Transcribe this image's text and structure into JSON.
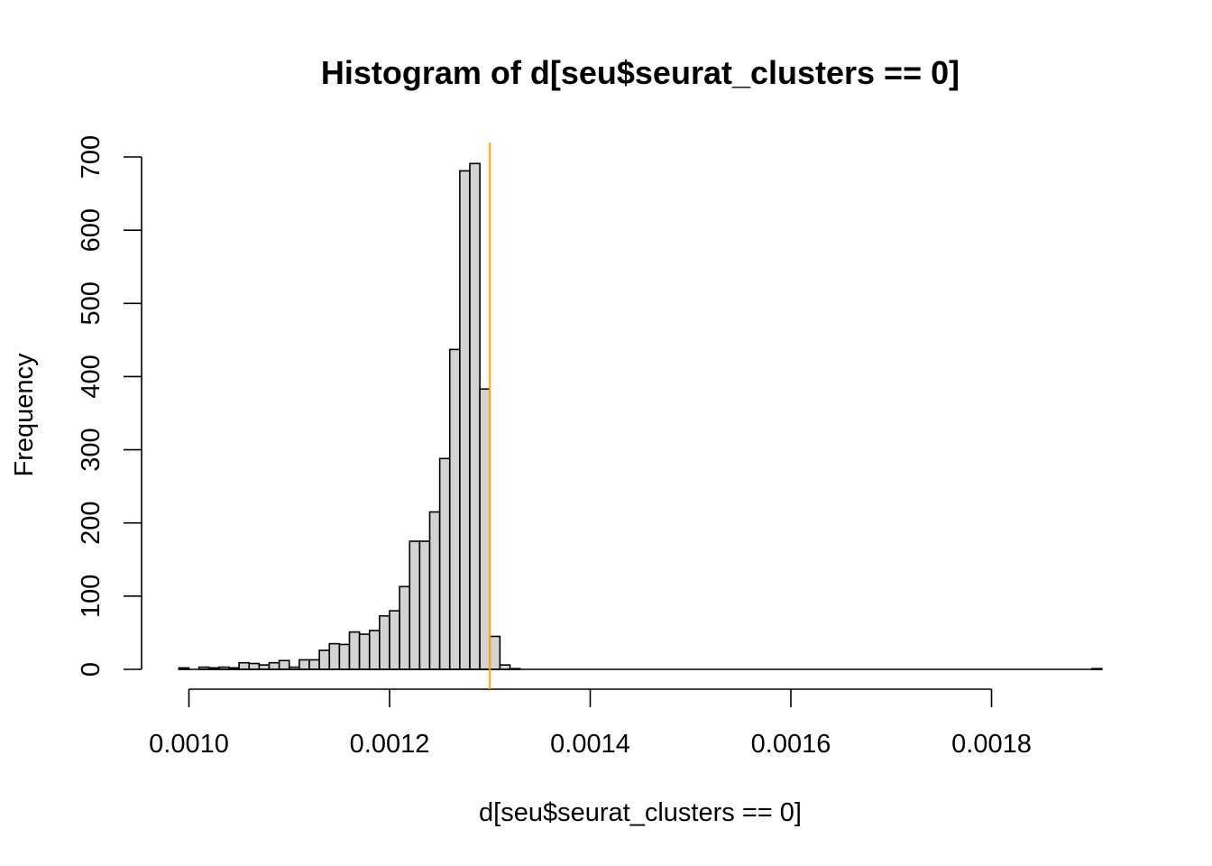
{
  "chart_data": {
    "type": "bar",
    "title": "Histogram of d[seu$seurat_clusters == 0]",
    "xlabel": "d[seu$seurat_clusters == 0]",
    "ylabel": "Frequency",
    "bin_width": 1e-05,
    "bins_start": [
      0.00099,
      0.001,
      0.00101,
      0.00102,
      0.00103,
      0.00104,
      0.00105,
      0.00106,
      0.00107,
      0.00108,
      0.00109,
      0.0011,
      0.00111,
      0.00112,
      0.00113,
      0.00114,
      0.00115,
      0.00116,
      0.00117,
      0.00118,
      0.00119,
      0.0012,
      0.00121,
      0.00122,
      0.00123,
      0.00124,
      0.00125,
      0.00126,
      0.00127,
      0.00128,
      0.00129,
      0.0013,
      0.00131,
      0.00132,
      0.0019
    ],
    "values": [
      2,
      0,
      3,
      2,
      3,
      2,
      9,
      8,
      6,
      9,
      12,
      3,
      13,
      13,
      26,
      35,
      34,
      51,
      48,
      53,
      73,
      80,
      113,
      175,
      175,
      215,
      288,
      437,
      681,
      691,
      383,
      45,
      6,
      1,
      1
    ],
    "xlim": [
      0.00099,
      0.00191
    ],
    "ylim": [
      0,
      700
    ],
    "x_ticks": [
      "0.0010",
      "0.0012",
      "0.0014",
      "0.0016",
      "0.0018"
    ],
    "y_ticks": [
      "0",
      "100",
      "200",
      "300",
      "400",
      "500",
      "600",
      "700"
    ],
    "vline": {
      "x": 0.0013,
      "color": "#FFA500"
    },
    "bar_fill": "#D3D3D3",
    "bar_stroke": "#000000",
    "grid": false,
    "legend": "none"
  }
}
